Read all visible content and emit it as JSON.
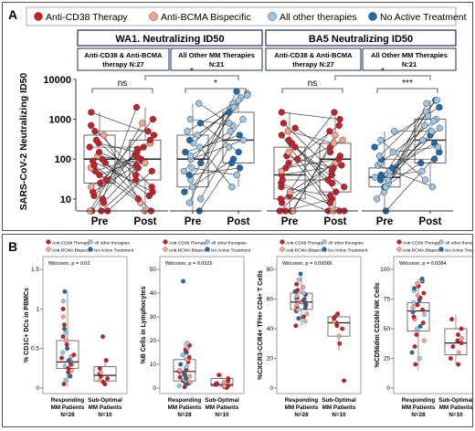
{
  "panels": {
    "a": {
      "letter": "A",
      "legend": [
        "Anti-CD38 Therapy",
        "Anti-BCMA Bispecific",
        "All other therapies",
        "No Active Treatment"
      ],
      "group_titles": [
        "WA1. Neutralizing ID50",
        "BA5 Neutralizing ID50"
      ],
      "subgroups": [
        "Anti-CD38 & Anti-BCMA therapy N:27",
        "All Other MM Therapies N:21",
        "Anti-CD38 & Anti-BCMA therapy N:27",
        "All Other MM Therapies N:21"
      ],
      "ylabel": "SARS-CoV-2 Neutralizing ID50",
      "yticks": [
        "10000",
        "1000",
        "100",
        "10"
      ],
      "xticks": [
        "Pre",
        "Post"
      ],
      "sig": [
        "ns",
        "*",
        "ns",
        "***"
      ],
      "sig_bracket": [
        "*",
        "*"
      ]
    },
    "b": {
      "letter": "B",
      "legend": [
        "Anti-CD38 Therapy",
        "All other therapies",
        "Anti-BCMA Bispecific",
        "No Active Treatment"
      ],
      "xcats": [
        "Responding MM Patients N=28",
        "Sub-Optimal MM Patients N=10"
      ]
    }
  },
  "colors": {
    "anti_cd38": "#c8202a",
    "anti_bcma": "#f2a58a",
    "all_other": "#9cc6e4",
    "no_active": "#1f6aa8"
  },
  "chart_data": [
    {
      "type": "scatter",
      "title": "WA1. Neutralizing ID50",
      "subgroup": "Anti-CD38 & Anti-BCMA therapy N:27",
      "ylabel": "SARS-CoV-2 Neutralizing ID50",
      "yscale": "log",
      "ylim": [
        5,
        10000
      ],
      "categories": [
        "Pre",
        "Post"
      ],
      "significance": "ns",
      "pre": [
        5,
        5,
        5,
        5,
        8,
        10,
        12,
        15,
        20,
        25,
        30,
        40,
        50,
        60,
        70,
        80,
        90,
        100,
        120,
        150,
        200,
        250,
        300,
        400,
        500,
        700,
        1500
      ],
      "post": [
        5,
        5,
        8,
        10,
        12,
        15,
        20,
        30,
        40,
        50,
        60,
        70,
        80,
        90,
        100,
        110,
        130,
        150,
        180,
        200,
        250,
        300,
        400,
        500,
        800,
        1000,
        2000
      ],
      "boxes": [
        {
          "q1": 25,
          "median": 100,
          "q3": 400
        },
        {
          "q1": 30,
          "median": 100,
          "q3": 300
        }
      ]
    },
    {
      "type": "scatter",
      "title": "WA1. Neutralizing ID50",
      "subgroup": "All Other MM Therapies N:21",
      "yscale": "log",
      "ylim": [
        5,
        10000
      ],
      "categories": [
        "Pre",
        "Post"
      ],
      "significance": "*",
      "bracket_significance": "*",
      "pre": [
        5,
        8,
        10,
        15,
        20,
        30,
        40,
        50,
        60,
        80,
        100,
        120,
        150,
        200,
        250,
        300,
        400,
        500,
        800,
        1000,
        2500
      ],
      "post": [
        20,
        40,
        60,
        80,
        100,
        150,
        200,
        300,
        400,
        500,
        700,
        800,
        1000,
        1500,
        2000,
        2500,
        3000,
        3500,
        4000,
        4500,
        5000
      ],
      "boxes": [
        {
          "q1": 20,
          "median": 100,
          "q3": 400
        },
        {
          "q1": 80,
          "median": 300,
          "q3": 1500
        }
      ]
    },
    {
      "type": "scatter",
      "title": "BA5 Neutralizing ID50",
      "subgroup": "Anti-CD38 & Anti-BCMA therapy N:27",
      "yscale": "log",
      "ylim": [
        5,
        10000
      ],
      "categories": [
        "Pre",
        "Post"
      ],
      "significance": "ns",
      "pre": [
        5,
        5,
        5,
        5,
        5,
        8,
        10,
        12,
        15,
        20,
        25,
        30,
        40,
        50,
        60,
        80,
        100,
        120,
        150,
        200,
        250,
        300,
        400,
        500,
        600,
        800,
        1500
      ],
      "post": [
        5,
        5,
        5,
        5,
        8,
        10,
        12,
        15,
        20,
        25,
        30,
        40,
        50,
        60,
        70,
        80,
        100,
        120,
        150,
        200,
        250,
        300,
        400,
        500,
        700,
        1000,
        1500
      ],
      "boxes": [
        {
          "q1": 10,
          "median": 40,
          "q3": 200
        },
        {
          "q1": 15,
          "median": 100,
          "q3": 250
        }
      ]
    },
    {
      "type": "scatter",
      "title": "BA5 Neutralizing ID50",
      "subgroup": "All Other MM Therapies N:21",
      "yscale": "log",
      "ylim": [
        5,
        10000
      ],
      "categories": [
        "Pre",
        "Post"
      ],
      "significance": "***",
      "bracket_significance": "*",
      "pre": [
        5,
        10,
        15,
        20,
        20,
        25,
        30,
        30,
        35,
        40,
        40,
        50,
        60,
        70,
        80,
        100,
        120,
        150,
        200,
        300,
        500
      ],
      "post": [
        20,
        30,
        50,
        80,
        100,
        150,
        200,
        250,
        300,
        400,
        500,
        600,
        700,
        900,
        1000,
        1200,
        1500,
        2000,
        2500,
        3000,
        3000
      ],
      "boxes": [
        {
          "q1": 20,
          "median": 35,
          "q3": 60
        },
        {
          "q1": 80,
          "median": 300,
          "q3": 1000
        }
      ]
    },
    {
      "type": "scatter",
      "ylabel": "% CD1C+ DCs in PBMCs",
      "annotation": "Wilcoxon, p = 0.02",
      "categories": [
        "Responding MM Patients N=28",
        "Sub-Optimal MM Patients N=10"
      ],
      "ylim": [
        0,
        1.5
      ],
      "yticks": [
        0.0,
        0.5,
        1.0,
        1.5
      ],
      "groups": [
        [
          0.05,
          0.1,
          0.15,
          0.2,
          0.22,
          0.25,
          0.28,
          0.3,
          0.3,
          0.32,
          0.33,
          0.35,
          0.35,
          0.38,
          0.4,
          0.42,
          0.45,
          0.5,
          0.55,
          0.6,
          0.65,
          0.7,
          0.75,
          0.8,
          0.9,
          1.0,
          1.1,
          1.22
        ],
        [
          0.05,
          0.08,
          0.1,
          0.12,
          0.15,
          0.18,
          0.2,
          0.25,
          0.35,
          0.65
        ]
      ],
      "boxes": [
        {
          "q1": 0.25,
          "median": 0.33,
          "q3": 0.6,
          "lo": 0.02,
          "hi": 1.22
        },
        {
          "q1": 0.09,
          "median": 0.16,
          "q3": 0.27,
          "lo": 0.03,
          "hi": 0.38
        }
      ]
    },
    {
      "type": "scatter",
      "ylabel": "%B Cells in Lymphocytes",
      "annotation": "Wilcoxon, p = 0.0026",
      "categories": [
        "Responding MM Patients N=28",
        "Sub-Optimal MM Patients N=10"
      ],
      "ylim": [
        0,
        50
      ],
      "yticks": [
        0,
        10,
        20,
        30,
        40,
        50
      ],
      "groups": [
        [
          0.5,
          1,
          1.5,
          2,
          2.5,
          3,
          3.5,
          4,
          4.5,
          5,
          5.5,
          6,
          6.5,
          7,
          7.5,
          8,
          9,
          10,
          11,
          12,
          13,
          14,
          15,
          16,
          17,
          18,
          19,
          45
        ],
        [
          0.2,
          0.5,
          0.8,
          1,
          1.5,
          2,
          2.5,
          3,
          4,
          5.5
        ]
      ],
      "boxes": [
        {
          "q1": 3,
          "median": 7,
          "q3": 12,
          "lo": 0.3,
          "hi": 19
        },
        {
          "q1": 0.8,
          "median": 1.5,
          "q3": 4,
          "lo": 0.1,
          "hi": 6
        }
      ]
    },
    {
      "type": "scatter",
      "ylabel": "%CXCR3-CCR4+ TFH+ CD4+ T Cells",
      "annotation": "Wilcoxon, p = 0.00066",
      "categories": [
        "Responding MM Patients N=28",
        "Sub-Optimal MM Patients N=10"
      ],
      "ylim": [
        0,
        80
      ],
      "yticks": [
        0,
        20,
        40,
        60,
        80
      ],
      "groups": [
        [
          42,
          45,
          47,
          48,
          50,
          52,
          53,
          54,
          55,
          56,
          56,
          57,
          57,
          58,
          58,
          59,
          60,
          60,
          61,
          62,
          63,
          64,
          65,
          66,
          68,
          70,
          73,
          77
        ],
        [
          5,
          30,
          35,
          40,
          42,
          44,
          45,
          47,
          48,
          50
        ]
      ],
      "boxes": [
        {
          "q1": 53,
          "median": 58,
          "q3": 64,
          "lo": 42,
          "hi": 77
        },
        {
          "q1": 35,
          "median": 44,
          "q3": 48,
          "lo": 25,
          "hi": 52
        }
      ]
    },
    {
      "type": "scatter",
      "ylabel": "%CD56dim CD16hi NK Cells",
      "annotation": "Wilcoxon, p = 0.0084",
      "categories": [
        "Responding MM Patients N=28",
        "Sub-Optimal MM Patients N=10"
      ],
      "ylim": [
        0,
        100
      ],
      "yticks": [
        0,
        25,
        50,
        75,
        100
      ],
      "groups": [
        [
          20,
          25,
          30,
          35,
          40,
          45,
          50,
          52,
          55,
          58,
          60,
          62,
          64,
          66,
          68,
          70,
          72,
          74,
          76,
          78,
          80,
          82,
          84,
          86,
          88,
          90,
          91,
          92
        ],
        [
          20,
          25,
          30,
          35,
          38,
          40,
          42,
          45,
          50,
          58
        ]
      ],
      "boxes": [
        {
          "q1": 48,
          "median": 65,
          "q3": 72,
          "lo": 15,
          "hi": 92
        },
        {
          "q1": 28,
          "median": 38,
          "q3": 50,
          "lo": 20,
          "hi": 62
        }
      ]
    }
  ]
}
